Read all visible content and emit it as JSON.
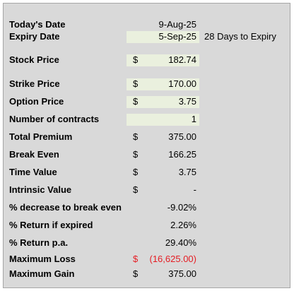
{
  "colors": {
    "input_fill": "#eaf0de",
    "sheet_bg": "#d9d9d9",
    "negative": "#e51c23"
  },
  "rows": {
    "today_date": {
      "label": "Today's Date",
      "value": "9-Aug-25"
    },
    "expiry_date": {
      "label": "Expiry Date",
      "value": "5-Sep-25",
      "note": "28 Days to Expiry"
    },
    "stock_price": {
      "label": "Stock Price",
      "currency": "$",
      "value": "182.74"
    },
    "strike_price": {
      "label": "Strike Price",
      "currency": "$",
      "value": "170.00"
    },
    "option_price": {
      "label": "Option Price",
      "currency": "$",
      "value": "3.75"
    },
    "num_contracts": {
      "label": "Number of contracts",
      "value": "1"
    },
    "total_premium": {
      "label": "Total Premium",
      "currency": "$",
      "value": "375.00"
    },
    "break_even": {
      "label": "Break Even",
      "currency": "$",
      "value": "166.25"
    },
    "time_value": {
      "label": "Time Value",
      "currency": "$",
      "value": "3.75"
    },
    "intrinsic_value": {
      "label": "Intrinsic Value",
      "currency": "$",
      "value": "-"
    },
    "pct_decrease": {
      "label": "% decrease to break even",
      "value": "-9.02%"
    },
    "pct_return_expired": {
      "label": "% Return if expired",
      "value": "2.26%"
    },
    "pct_return_pa": {
      "label": "% Return p.a.",
      "value": "29.40%"
    },
    "max_loss": {
      "label": "Maximum Loss",
      "currency": "$",
      "value": "(16,625.00)"
    },
    "max_gain": {
      "label": "Maximum Gain",
      "currency": "$",
      "value": "375.00"
    }
  }
}
